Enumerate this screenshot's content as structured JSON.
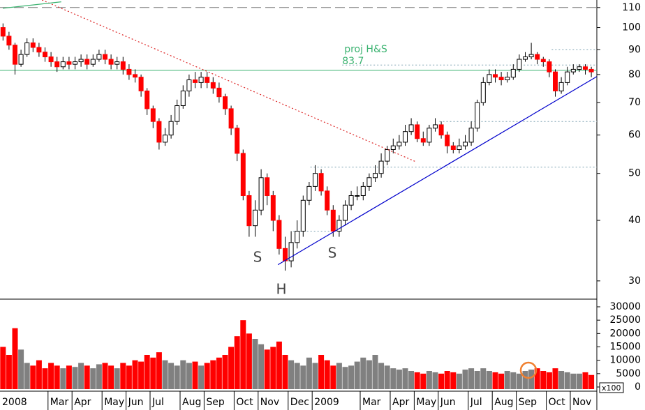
{
  "chart_data": {
    "type": "candlestick",
    "log_scale": true,
    "categories": [
      "2008",
      null,
      null,
      null,
      null,
      null,
      null,
      null,
      "Mar",
      null,
      null,
      null,
      "Apr",
      null,
      null,
      null,
      null,
      "May",
      null,
      null,
      null,
      "Jun",
      null,
      null,
      null,
      "Jul",
      null,
      null,
      null,
      null,
      "Aug",
      null,
      null,
      null,
      "Sep",
      null,
      null,
      null,
      null,
      "Oct",
      null,
      null,
      null,
      "Nov",
      null,
      null,
      null,
      null,
      "Dec",
      null,
      null,
      null,
      "2009",
      null,
      null,
      null,
      null,
      null,
      null,
      null,
      "Mar",
      null,
      null,
      null,
      null,
      "Apr",
      null,
      null,
      null,
      "May",
      null,
      null,
      null,
      "Jun",
      null,
      null,
      null,
      null,
      "Jul",
      null,
      null,
      null,
      "Aug",
      null,
      null,
      null,
      "Sep",
      null,
      null,
      null,
      null,
      "Oct",
      null,
      null,
      null,
      "Nov",
      null,
      null,
      null
    ],
    "open": [
      100,
      96,
      92,
      84,
      88,
      93,
      91,
      89,
      87,
      85,
      83,
      85,
      84,
      85,
      86,
      84,
      86,
      88,
      86,
      84,
      85,
      82,
      80,
      79,
      74,
      68,
      64,
      58,
      60,
      64,
      69,
      74,
      78,
      77,
      79,
      77,
      75,
      72,
      68,
      62,
      55,
      45,
      39,
      42,
      49,
      45,
      40,
      35,
      33,
      36,
      38,
      44,
      47,
      50,
      46,
      42,
      38,
      40,
      43,
      45,
      45,
      47,
      49,
      50,
      53,
      56,
      57,
      58,
      61,
      63,
      59,
      58,
      62,
      63,
      60,
      57,
      56,
      57,
      58,
      62,
      70,
      77,
      80,
      79,
      78,
      79,
      82,
      86,
      87,
      88,
      86,
      85,
      81,
      74,
      77,
      81,
      82,
      83,
      82
    ],
    "high": [
      102,
      98,
      93,
      90,
      95,
      95,
      93,
      91,
      89,
      87,
      87,
      87,
      87,
      88,
      88,
      88,
      90,
      90,
      88,
      87,
      87,
      84,
      82,
      80,
      75,
      69,
      65,
      62,
      66,
      71,
      76,
      80,
      81,
      81,
      81,
      79,
      77,
      73,
      69,
      63,
      56,
      46,
      44,
      51,
      50,
      46,
      41,
      37,
      38,
      40,
      45,
      48,
      52,
      51,
      47,
      43,
      41,
      44,
      46,
      47,
      48,
      50,
      52,
      55,
      57,
      59,
      60,
      63,
      65,
      64,
      61,
      63,
      65,
      64,
      61,
      58,
      59,
      60,
      64,
      71,
      79,
      82,
      82,
      81,
      81,
      84,
      88,
      89,
      93,
      89,
      87,
      86,
      82,
      79,
      83,
      84,
      84,
      84,
      83
    ],
    "low": [
      94,
      90,
      80,
      83,
      87,
      89,
      87,
      85,
      83,
      81,
      82,
      82,
      82,
      83,
      82,
      83,
      85,
      84,
      82,
      82,
      80,
      78,
      77,
      72,
      66,
      62,
      56,
      57,
      59,
      63,
      68,
      72,
      75,
      75,
      75,
      73,
      70,
      66,
      60,
      53,
      44,
      37,
      37,
      41,
      43,
      38,
      34,
      31.5,
      32,
      35,
      37,
      43,
      46,
      45,
      41,
      37,
      37,
      39,
      42,
      44,
      44,
      46,
      48,
      49,
      52,
      55,
      56,
      57,
      60,
      58,
      57,
      57,
      61,
      59,
      55,
      55,
      55,
      56,
      57,
      61,
      69,
      76,
      77,
      76,
      77,
      78,
      81,
      85,
      86,
      84,
      83,
      79,
      72,
      73,
      76,
      80,
      81,
      80,
      79
    ],
    "close": [
      96,
      92,
      84,
      88,
      93,
      91,
      89,
      87,
      85,
      83,
      85,
      84,
      85,
      86,
      84,
      86,
      88,
      86,
      84,
      85,
      82,
      80,
      79,
      74,
      68,
      64,
      58,
      60,
      64,
      69,
      74,
      78,
      77,
      79,
      77,
      75,
      72,
      68,
      62,
      55,
      45,
      39,
      42,
      49,
      45,
      40,
      35,
      33,
      36,
      38,
      44,
      47,
      50,
      46,
      42,
      38,
      40,
      43,
      45,
      45,
      47,
      49,
      50,
      53,
      56,
      57,
      58,
      61,
      63,
      59,
      58,
      62,
      63,
      60,
      57,
      56,
      57,
      58,
      62,
      70,
      77,
      80,
      79,
      78,
      79,
      82,
      86,
      87,
      88,
      86,
      85,
      81,
      74,
      77,
      81,
      82,
      83,
      82,
      81
    ],
    "up_color": "#ffffff",
    "down_color": "#ff0000",
    "ylim": [
      27.6,
      114
    ],
    "yticks": [
      30,
      40,
      50,
      60,
      70,
      80,
      90,
      100,
      110
    ],
    "levels": [
      {
        "value": 110,
        "start": 0,
        "color": "#777777",
        "style": "dashed"
      },
      {
        "value": 81.6,
        "start": 0,
        "color": "#3cb371",
        "style": "solid"
      },
      {
        "value": 83.7,
        "start": 56.5,
        "color": "#7aa0b0",
        "style": "dotted",
        "label": "proj H&S"
      },
      {
        "value": 90,
        "start": 91.4,
        "color": "#7aa0b0",
        "style": "dotted"
      },
      {
        "value": 64,
        "start": 72.7,
        "color": "#7aa0b0",
        "style": "dotted"
      },
      {
        "value": 51.5,
        "start": 51.2,
        "color": "#7aa0b0",
        "style": "dotted"
      },
      {
        "value": 38,
        "start": 48.3,
        "end": 55.3,
        "color": "#7aa0b0",
        "style": "dotted"
      }
    ],
    "trend_lines": [
      {
        "from": [
          6.5,
          114
        ],
        "to": [
          68.7,
          52.9
        ],
        "color": "#dd2222",
        "style": "dotted"
      },
      {
        "from": [
          45.8,
          32.4
        ],
        "to": [
          98.9,
          79.2
        ],
        "color": "#0000cc",
        "style": "solid"
      },
      {
        "from": [
          0,
          109.6
        ],
        "to": [
          9.7,
          113
        ],
        "color": "#3cb371",
        "style": "solid"
      }
    ],
    "annotations": [
      "S",
      "S",
      "H"
    ],
    "volume": {
      "values": [
        15000,
        12000,
        22000,
        14000,
        9000,
        8000,
        10000,
        7000,
        9000,
        8000,
        7000,
        8000,
        7500,
        9000,
        8000,
        7000,
        8500,
        9000,
        8000,
        7000,
        9000,
        8000,
        10000,
        9500,
        12000,
        11000,
        13000,
        10000,
        9000,
        8000,
        10000,
        9000,
        9500,
        8000,
        9000,
        10000,
        11000,
        12000,
        15000,
        19000,
        25000,
        20000,
        18000,
        16000,
        14000,
        15000,
        17000,
        12000,
        10000,
        9000,
        8000,
        11000,
        9000,
        12000,
        10000,
        8000,
        9000,
        7500,
        8000,
        9500,
        11000,
        10000,
        12000,
        9000,
        8000,
        7000,
        6500,
        7000,
        6000,
        5500,
        5000,
        6000,
        5500,
        5000,
        6000,
        5500,
        5000,
        6500,
        7000,
        6000,
        7000,
        6000,
        5500,
        5000,
        6000,
        5500,
        5000,
        6000,
        6500,
        7000,
        6000,
        5500,
        7000,
        6000,
        5500,
        5000,
        5000,
        5500,
        4500
      ],
      "up_color": "#808080",
      "down_color": "#ff0000",
      "ylim": [
        0,
        32600
      ],
      "yticks": [
        0,
        5000,
        10000,
        15000,
        20000,
        25000,
        30000
      ],
      "unit_label": "x100"
    }
  }
}
